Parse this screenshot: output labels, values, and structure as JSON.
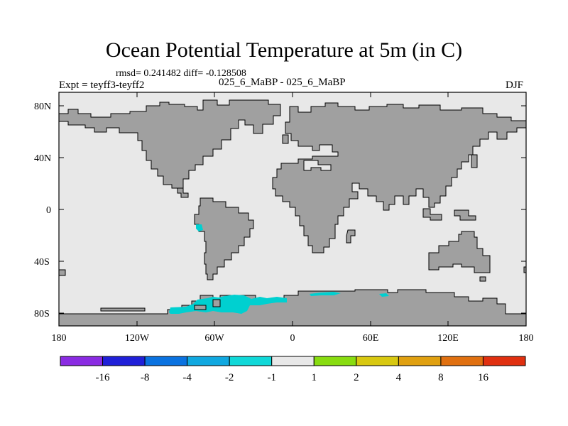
{
  "title": "Ocean Potential Temperature at 5m (in C)",
  "stats": "rmsd= 0.241482 diff= -0.128508",
  "experiment": "Expt = teyff3-teyff2",
  "period": "025_6_MaBP - 025_6_MaBP",
  "season": "DJF",
  "map": {
    "projection": "cylindrical equidistant",
    "lon_range": [
      -180,
      180
    ],
    "lat_range": [
      -90,
      90
    ],
    "ocean_color": "#e8e8e8",
    "land_color": "#a0a0a0",
    "anomaly_color": "#00d0d0",
    "anomaly_region": "Southern Ocean near Antarctic coast, approx 90W to 20E, -1 to -2 C"
  },
  "axes": {
    "y_ticks": [
      "80N",
      "40N",
      "0",
      "40S",
      "80S"
    ],
    "x_ticks": [
      "180",
      "120W",
      "60W",
      "0",
      "60E",
      "120E",
      "180"
    ]
  },
  "colorbar": {
    "colors": [
      "#8a2be2",
      "#2020d8",
      "#0a72e0",
      "#10a8e0",
      "#10d8d8",
      "#e8e8e8",
      "#88dc10",
      "#d8c810",
      "#e0a010",
      "#e07010",
      "#e03010"
    ],
    "labels": [
      "-16",
      "-8",
      "-4",
      "-2",
      "-1",
      "1",
      "2",
      "4",
      "8",
      "16"
    ]
  }
}
